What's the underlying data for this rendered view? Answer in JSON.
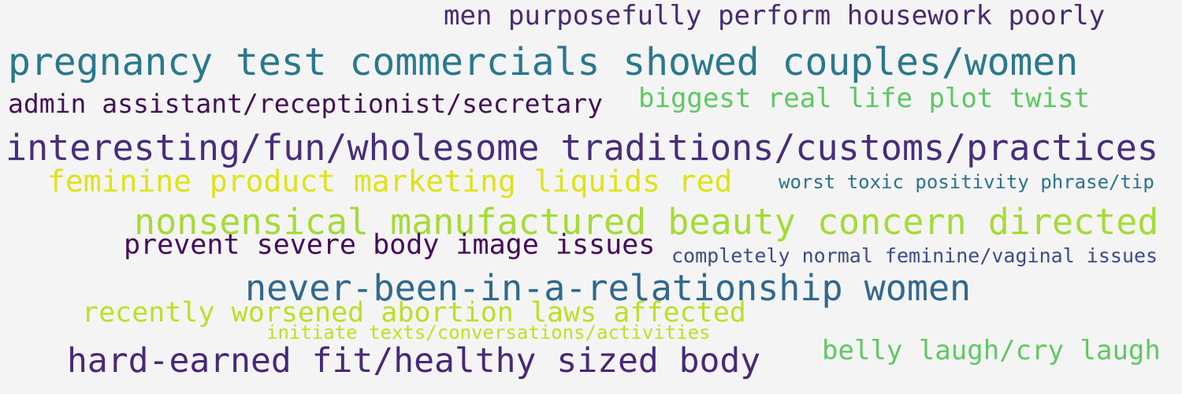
{
  "words": [
    {
      "text": "men purposefully perform housework poorly",
      "color": "#472b73"
    },
    {
      "text": "pregnancy test commercials showed couples/women",
      "color": "#2a788e"
    },
    {
      "text": "admin assistant/receptionist/secretary",
      "color": "#440f55"
    },
    {
      "text": "biggest real life plot twist",
      "color": "#5cc863"
    },
    {
      "text": "interesting/fun/wholesome traditions/customs/practices",
      "color": "#472d7b"
    },
    {
      "text": "feminine product marketing liquids red",
      "color": "#dfe318"
    },
    {
      "text": "worst toxic positivity phrase/tip",
      "color": "#2c728e"
    },
    {
      "text": "nonsensical manufactured beauty concern directed",
      "color": "#a5db36"
    },
    {
      "text": "prevent severe body image issues",
      "color": "#46085c"
    },
    {
      "text": "completely normal feminine/vaginal issues",
      "color": "#3e4a89"
    },
    {
      "text": "never-been-in-a-relationship women",
      "color": "#31688e"
    },
    {
      "text": "recently worsened abortion laws affected",
      "color": "#bddf26"
    },
    {
      "text": "initiate texts/conversations/activities",
      "color": "#c2df23"
    },
    {
      "text": "belly laugh/cry laugh",
      "color": "#5ec962"
    },
    {
      "text": "hard-earned fit/healthy sized body",
      "color": "#482878"
    }
  ]
}
